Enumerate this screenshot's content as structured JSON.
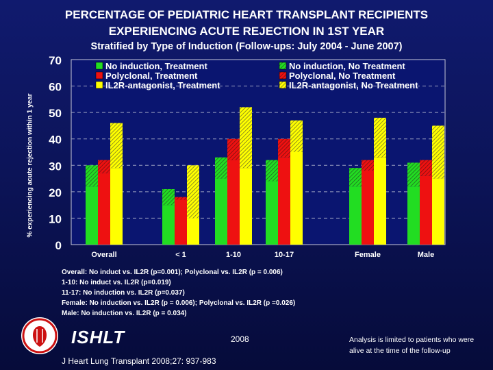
{
  "header": {
    "title_line1": "PERCENTAGE OF PEDIATRIC HEART TRANSPLANT RECIPIENTS",
    "title_line2": "EXPERIENCING ACUTE REJECTION IN 1ST YEAR",
    "subtitle": "Stratified by Type of Induction (Follow-ups: July 2004 - June 2007)"
  },
  "chart_data": {
    "type": "bar",
    "title": "PERCENTAGE OF PEDIATRIC HEART TRANSPLANT RECIPIENTS EXPERIENCING ACUTE REJECTION IN 1ST YEAR",
    "subtitle": "Stratified by Type of Induction (Follow-ups: July 2004 - June 2007)",
    "ylabel": "% experiencing acute rejection within 1 year",
    "xlabel": "",
    "ylim": [
      0,
      70
    ],
    "yticks": [
      0,
      10,
      20,
      30,
      40,
      50,
      60,
      70
    ],
    "grid": "dashed horizontal",
    "stacked": true,
    "categories": [
      "Overall",
      "< 1",
      "1-10",
      "10-17",
      "Female",
      "Male"
    ],
    "series": [
      {
        "name": "No induction, Treatment",
        "group": "No induction",
        "color": "#22dd22",
        "pattern": "solid",
        "values": [
          22,
          15,
          25,
          24,
          22,
          22
        ]
      },
      {
        "name": "No induction, No Treatment",
        "group": "No induction",
        "color": "#22dd22",
        "pattern": "hatched",
        "values": [
          8,
          6,
          8,
          8,
          7,
          9
        ]
      },
      {
        "name": "Polyclonal, Treatment",
        "group": "Polyclonal",
        "color": "#ee1111",
        "pattern": "solid",
        "values": [
          27,
          17,
          32,
          33,
          28,
          26
        ]
      },
      {
        "name": "Polyclonal, No Treatment",
        "group": "Polyclonal",
        "color": "#ee1111",
        "pattern": "hatched",
        "values": [
          5,
          1,
          8,
          7,
          4,
          6
        ]
      },
      {
        "name": "IL2R-antagonist, Treatment",
        "group": "IL2R-antagonist",
        "color": "#ffff00",
        "pattern": "solid",
        "values": [
          29,
          10,
          29,
          35,
          33,
          25
        ]
      },
      {
        "name": "IL2R-antagonist, No Treatment",
        "group": "IL2R-antagonist",
        "color": "#ffff00",
        "pattern": "hatched",
        "values": [
          17,
          20,
          23,
          12,
          15,
          20
        ]
      }
    ],
    "legend": {
      "placement": "top",
      "entries": [
        "No induction, Treatment",
        "No induction, No Treatment",
        "Polyclonal, Treatment",
        "Polyclonal, No Treatment",
        "IL2R-antagonist, Treatment",
        "IL2R-antagonist, No Treatment"
      ]
    }
  },
  "notes": [
    "Overall: No induct vs. IL2R (p=0.001); Polyclonal vs. IL2R (p = 0.006)",
    "1-10: No induct vs. IL2R (p=0.019)",
    "11-17: No induction vs. IL2R (p=0.037)",
    "Female:  No induction vs. IL2R (p = 0.006); Polyclonal vs. IL2R (p =0.026)",
    "Male:  No induction vs. IL2R (p = 0.034)"
  ],
  "footer": {
    "org": "ISHLT",
    "year": "2008",
    "citation": "J Heart Lung Transplant 2008;27: 937-983",
    "analysis_note": "Analysis is limited to patients who were alive at the time of the follow-up"
  },
  "colors": {
    "background": "#0c1459",
    "green": "#22dd22",
    "red": "#ee1111",
    "yellow": "#ffff00",
    "plot_bg": "#0a1570"
  }
}
